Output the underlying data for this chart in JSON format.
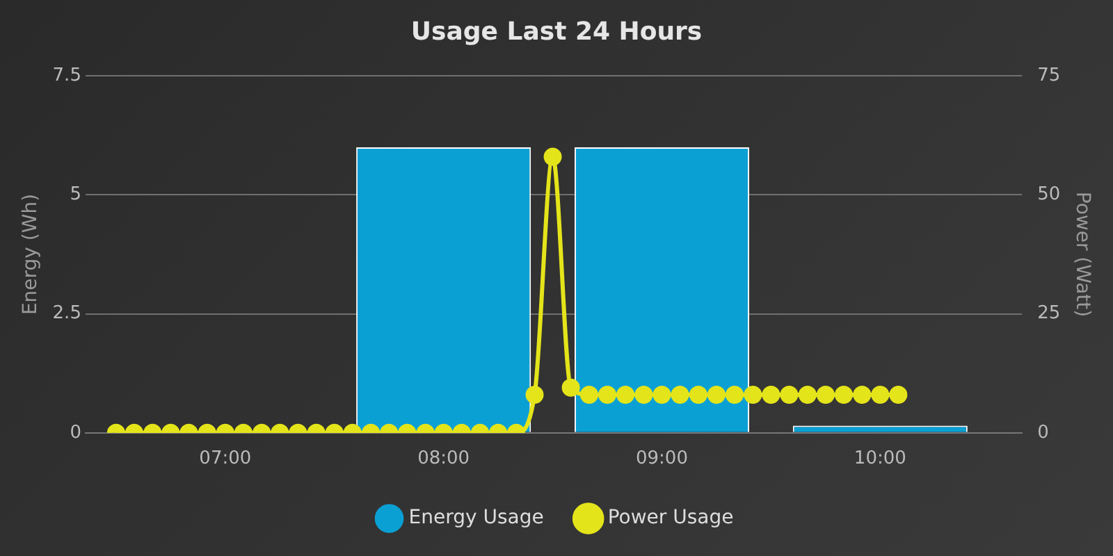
{
  "chart_data": {
    "type": "bar",
    "title": "Usage Last 24 Hours",
    "ylabel": "Energy (Wh)",
    "y2label": "Power (Watt)",
    "xlim": [
      6.36,
      10.65
    ],
    "xticks": [
      {
        "value": 7,
        "label": "07:00"
      },
      {
        "value": 8,
        "label": "08:00"
      },
      {
        "value": 9,
        "label": "09:00"
      },
      {
        "value": 10,
        "label": "10:00"
      }
    ],
    "ylim": [
      0,
      7.5
    ],
    "yticks": [
      0,
      2.5,
      5,
      7.5
    ],
    "y2lim": [
      0,
      75
    ],
    "y2ticks": [
      0,
      25,
      50,
      75
    ],
    "grid": "y",
    "legend": "bottom",
    "marker": "circle",
    "series": [
      {
        "name": "Energy Usage",
        "color": "#0ba0d4",
        "x": [
          7,
          8,
          9,
          10
        ],
        "values": [
          0.02,
          6,
          6,
          0.15
        ]
      },
      {
        "name": "Power Usage",
        "type": "line",
        "axis": "y2",
        "color": "#e4e41a",
        "x": [
          6.5,
          6.583,
          6.667,
          6.75,
          6.833,
          6.917,
          7,
          7.083,
          7.167,
          7.25,
          7.333,
          7.417,
          7.5,
          7.583,
          7.667,
          7.75,
          7.833,
          7.917,
          8,
          8.083,
          8.167,
          8.25,
          8.333,
          8.417,
          8.5,
          8.583,
          8.667,
          8.75,
          8.833,
          8.917,
          9,
          9.083,
          9.167,
          9.25,
          9.333,
          9.417,
          9.5,
          9.583,
          9.667,
          9.75,
          9.833,
          9.917,
          10,
          10.083
        ],
        "values": [
          0,
          0,
          0,
          0,
          0,
          0,
          0,
          0,
          0,
          0,
          0,
          0,
          0,
          0,
          0,
          0,
          0,
          0,
          0,
          0,
          0,
          0,
          0,
          8,
          58,
          9.5,
          8,
          8,
          8,
          8,
          8,
          8,
          8,
          8,
          8,
          8,
          8,
          8,
          8,
          8,
          8,
          8,
          8,
          8
        ]
      }
    ]
  }
}
